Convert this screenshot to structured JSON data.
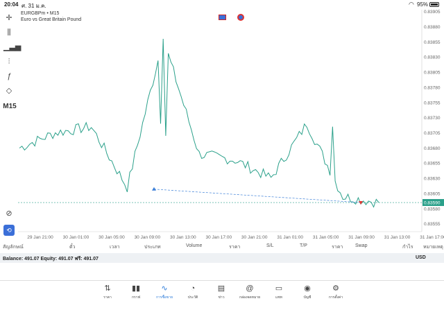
{
  "status_bar": {
    "time": "20:04",
    "date": "ศ. 31 ม.ค.",
    "battery": "95%"
  },
  "chart": {
    "symbol": "EURGBPm • M15",
    "description": "Euro vs Great Britain Pound",
    "timeframe": "M15",
    "current_price": "0.83590",
    "price_line_color": "#2aa08a",
    "trade_line_color": "#3b7fd8",
    "y_ticks": [
      "0.83905",
      "0.83880",
      "0.83855",
      "0.83830",
      "0.83805",
      "0.83780",
      "0.83755",
      "0.83730",
      "0.83705",
      "0.83680",
      "0.83655",
      "0.83630",
      "0.83605",
      "0.83580",
      "0.83555"
    ],
    "x_ticks": [
      "29 Jan 21:00",
      "30 Jan 01:00",
      "30 Jan 05:00",
      "30 Jan 09:00",
      "30 Jan 13:00",
      "30 Jan 17:00",
      "30 Jan 21:00",
      "31 Jan 01:00",
      "31 Jan 05:00",
      "31 Jan 09:00",
      "31 Jan 13:00",
      "31 Jan 17:00"
    ]
  },
  "toolbar": {
    "crosshair": "crosshair-icon",
    "indicators": "candles-icon",
    "volume": "bars-icon",
    "settings": "sliders-icon",
    "function": "function-icon",
    "shapes": "shapes-icon",
    "timeframe": "M15",
    "trade": "trade-icon",
    "one_click": "oneclick-icon"
  },
  "columns": [
    "สัญลักษณ์",
    "ตั๋ว",
    "เวลา",
    "ประเภท",
    "Volume",
    "ราคา",
    "S/L",
    "T/P",
    "ราคา",
    "Swap",
    "กำไร",
    "หมายเหตุ"
  ],
  "account": {
    "balance_line": "Balance: 491.07 Equity: 491.07 ฟรี: 491.07",
    "currency": "USD"
  },
  "nav": [
    {
      "label": "ราคา",
      "icon": "⇅"
    },
    {
      "label": "กราฟ",
      "icon": "▮▮"
    },
    {
      "label": "การซื้อขาย",
      "icon": "∿"
    },
    {
      "label": "ประวัติ",
      "icon": "◔"
    },
    {
      "label": "ข่าว",
      "icon": "▤"
    },
    {
      "label": "กล่องจดหมาย",
      "icon": "@"
    },
    {
      "label": "แชท",
      "icon": "▭"
    },
    {
      "label": "บัญชี",
      "icon": "◉"
    },
    {
      "label": "การตั้งค่า",
      "icon": "⚙"
    }
  ],
  "chart_data": {
    "type": "line",
    "title": "EURGBPm • M15",
    "x": [
      "29 Jan 21:00",
      "30 Jan 01:00",
      "30 Jan 05:00",
      "30 Jan 09:00",
      "30 Jan 13:00",
      "30 Jan 17:00",
      "30 Jan 21:00",
      "31 Jan 01:00",
      "31 Jan 05:00",
      "31 Jan 09:00",
      "31 Jan 13:00"
    ],
    "values": [
      0.8368,
      0.83705,
      0.83715,
      0.83615,
      0.8386,
      0.8367,
      0.8366,
      0.8363,
      0.8372,
      0.836,
      0.8359
    ],
    "ylim": [
      0.83542,
      0.83908
    ],
    "grid": false,
    "legend": "none"
  }
}
